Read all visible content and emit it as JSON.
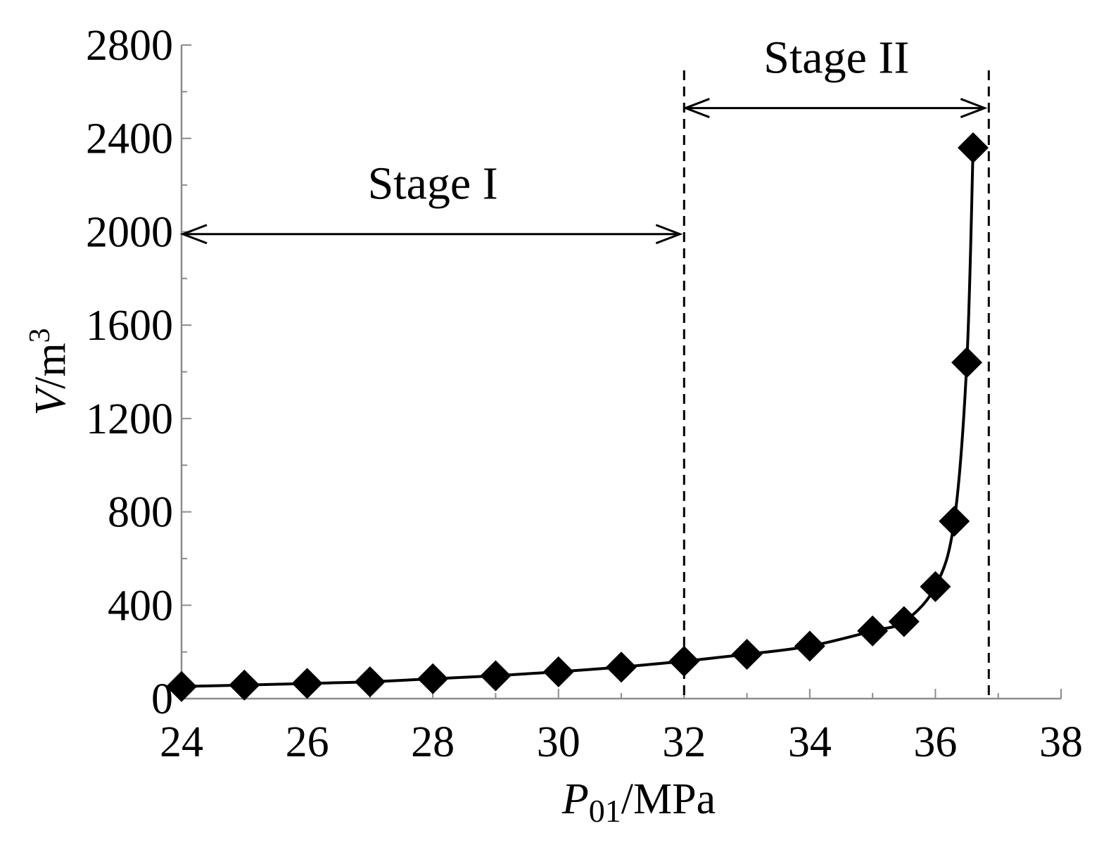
{
  "chart_data": {
    "type": "line",
    "title": "",
    "xlabel": {
      "symbol": "P",
      "subscript": "01",
      "unit": "/MPa"
    },
    "ylabel": {
      "symbol": "V",
      "unit": "/m",
      "superscript": "3"
    },
    "xlim": [
      24,
      38
    ],
    "ylim": [
      0,
      2800
    ],
    "xticks": [
      24,
      26,
      28,
      30,
      32,
      34,
      36,
      38
    ],
    "yticks": [
      0,
      400,
      800,
      1200,
      1600,
      2000,
      2400,
      2800
    ],
    "grid": false,
    "series": [
      {
        "marker": "diamond",
        "color": "#000000",
        "x": [
          24,
          25,
          26,
          27,
          28,
          29,
          30,
          31,
          32,
          33,
          34,
          35,
          35.5,
          36,
          36.3,
          36.5,
          36.6
        ],
        "y": [
          52,
          58,
          65,
          72,
          85,
          98,
          115,
          135,
          160,
          190,
          225,
          290,
          330,
          480,
          760,
          1440,
          2360
        ]
      }
    ],
    "annotations": {
      "vlines": [
        32,
        36.85
      ],
      "stages": [
        {
          "label": "Stage I",
          "x_from": 24,
          "x_to": 32,
          "arrow_y": 1990
        },
        {
          "label": "Stage II",
          "x_from": 32,
          "x_to": 36.85,
          "arrow_y": 2530
        }
      ]
    }
  }
}
